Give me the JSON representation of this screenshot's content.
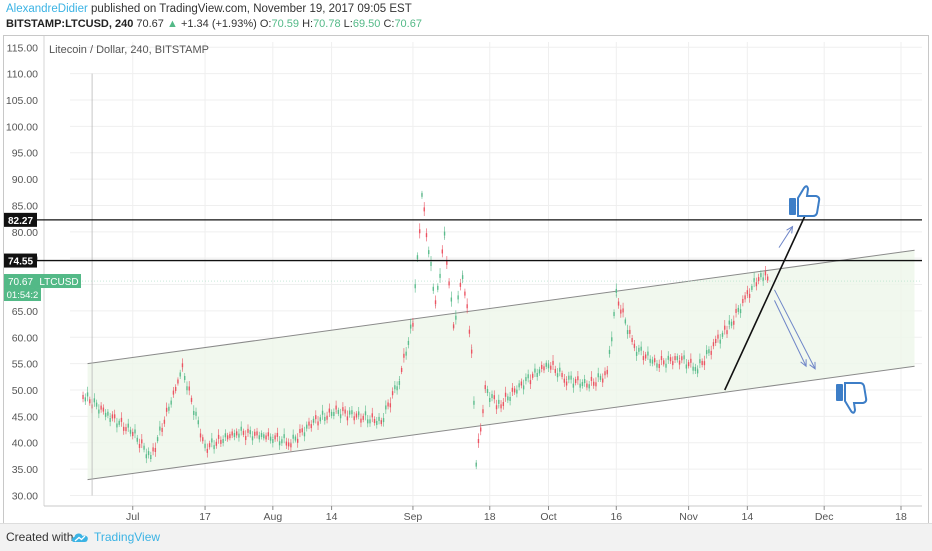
{
  "header": {
    "author": "AlexandreDidier",
    "published": "published on TradingView.com, November 19, 2017 09:05 EST",
    "symbol": "BITSTAMP:LTCUSD, 240",
    "last": "70.67",
    "change": "+1.34 (+1.93%)",
    "open_label": "O:",
    "open": "70.59",
    "high_label": "H:",
    "high": "70.78",
    "low_label": "L:",
    "low": "69.50",
    "close_label": "C:",
    "close": "70.67"
  },
  "chart_data": {
    "type": "line",
    "title": "Litecoin / Dollar, 240, BITSTAMP",
    "ylim": [
      28,
      116
    ],
    "y_ticks": [
      "30.00",
      "35.00",
      "40.00",
      "45.00",
      "50.00",
      "55.00",
      "60.00",
      "65.00",
      "70.00",
      "75.00",
      "80.00",
      "85.00",
      "90.00",
      "95.00",
      "100.00",
      "105.00",
      "110.00",
      "115.00"
    ],
    "x_ticks": [
      "Jul",
      "17",
      "Aug",
      "14",
      "Sep",
      "18",
      "Oct",
      "16",
      "Nov",
      "14",
      "Dec",
      "18"
    ],
    "series": [
      {
        "name": "LTCUSD",
        "x": [
          "Jun 20",
          "Jun 26",
          "Jul 1",
          "Jul 5",
          "Jul 12",
          "Jul 17",
          "Jul 24",
          "Aug 1",
          "Aug 5",
          "Aug 10",
          "Aug 15",
          "Aug 20",
          "Aug 25",
          "Aug 29",
          "Sep 1",
          "Sep 3",
          "Sep 6",
          "Sep 8",
          "Sep 10",
          "Sep 12",
          "Sep 14",
          "Sep 15",
          "Sep 17",
          "Sep 20",
          "Sep 25",
          "Oct 1",
          "Oct 5",
          "Oct 10",
          "Oct 14",
          "Oct 16",
          "Oct 20",
          "Oct 25",
          "Oct 30",
          "Nov 3",
          "Nov 7",
          "Nov 10",
          "Nov 14",
          "Nov 17",
          "Nov 19"
        ],
        "values": [
          49,
          45,
          42,
          37,
          54,
          39,
          42,
          41,
          40,
          44,
          46,
          45,
          44,
          52,
          63,
          87,
          66,
          79,
          62,
          72,
          58,
          36,
          50,
          47,
          51,
          55,
          52,
          51,
          53,
          68,
          58,
          55,
          56,
          54,
          59,
          62,
          68,
          72,
          70.67
        ]
      }
    ],
    "channel_upper": {
      "x": [
        "Jun 21",
        "Dec 21"
      ],
      "values": [
        55,
        76.5
      ]
    },
    "channel_lower": {
      "x": [
        "Jun 21",
        "Dec 21"
      ],
      "values": [
        33,
        54.5
      ]
    },
    "trendline": {
      "x": [
        "Nov 9",
        "Nov 27"
      ],
      "values": [
        50,
        83.5
      ]
    },
    "hlines": [
      {
        "value": 82.27,
        "label": "82.27"
      },
      {
        "value": 74.55,
        "label": "74.55"
      }
    ],
    "price_label": {
      "value": 70.67,
      "text": "70.67",
      "symbol": "LTCUSD",
      "countdown": "01:54:2"
    },
    "arrows": [
      {
        "from": [
          "Nov 21",
          77
        ],
        "to": [
          "Nov 24",
          81
        ]
      },
      {
        "from": [
          "Nov 20",
          69
        ],
        "to": [
          "Nov 29",
          54
        ]
      },
      {
        "from": [
          "Nov 20",
          67
        ],
        "to": [
          "Nov 27",
          54.5
        ]
      }
    ],
    "grid": true,
    "icons": [
      "thumbs-up-icon",
      "thumbs-down-icon"
    ]
  },
  "footer": {
    "created": "Created with",
    "brand": "TradingView"
  },
  "colors": {
    "accent": "#3bb3e4",
    "up": "#53b987",
    "down": "#eb4d5c",
    "channel": "#8a8a8a",
    "fill": "#eef6ea",
    "arrow": "#6f86c8",
    "icon": "#3d7ec7"
  }
}
